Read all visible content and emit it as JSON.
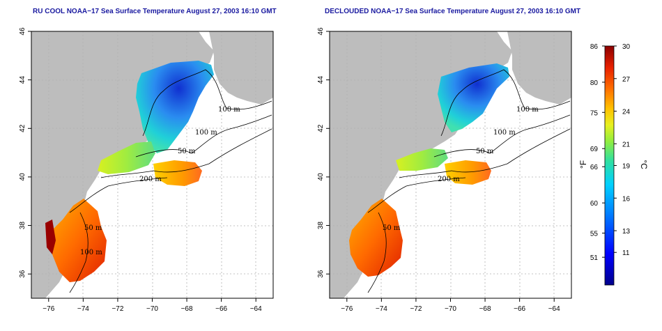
{
  "panels": [
    {
      "title": "RU COOL NOAA−17 Sea Surface Temperature August 27, 2003 16:10 GMT",
      "contours": [
        "100 m",
        "100 m",
        "50 m",
        "200 m",
        "50 m",
        "100 m"
      ]
    },
    {
      "title": "DECLOUDED NOAA−17 Sea Surface Temperature August 27, 2003 16:10 GMT",
      "contours": [
        "100 m",
        "100 m",
        "50 m",
        "200 m",
        "50 m"
      ]
    }
  ],
  "axes": {
    "x_ticks": [
      "−76",
      "−74",
      "−72",
      "−70",
      "−68",
      "−66",
      "−64"
    ],
    "y_ticks": [
      "36",
      "38",
      "40",
      "42",
      "44",
      "46"
    ],
    "lon_range": [
      -77,
      -63
    ],
    "lat_range": [
      35,
      46
    ]
  },
  "colorbar": {
    "celsius_range": [
      8,
      30
    ],
    "fahrenheit_ticks": [
      "86",
      "80",
      "75",
      "69",
      "66",
      "60",
      "55",
      "51"
    ],
    "celsius_ticks": [
      "30",
      "27",
      "24",
      "21",
      "19",
      "16",
      "13",
      "11"
    ],
    "fahrenheit_unit": "°F",
    "celsius_unit": "°C"
  },
  "colors": {
    "land": "#bdbdbd",
    "ocean_bg": "#ffffff",
    "title": "#1a1aa0",
    "warm": "#cc1a1a",
    "cold": "#1030c0"
  }
}
